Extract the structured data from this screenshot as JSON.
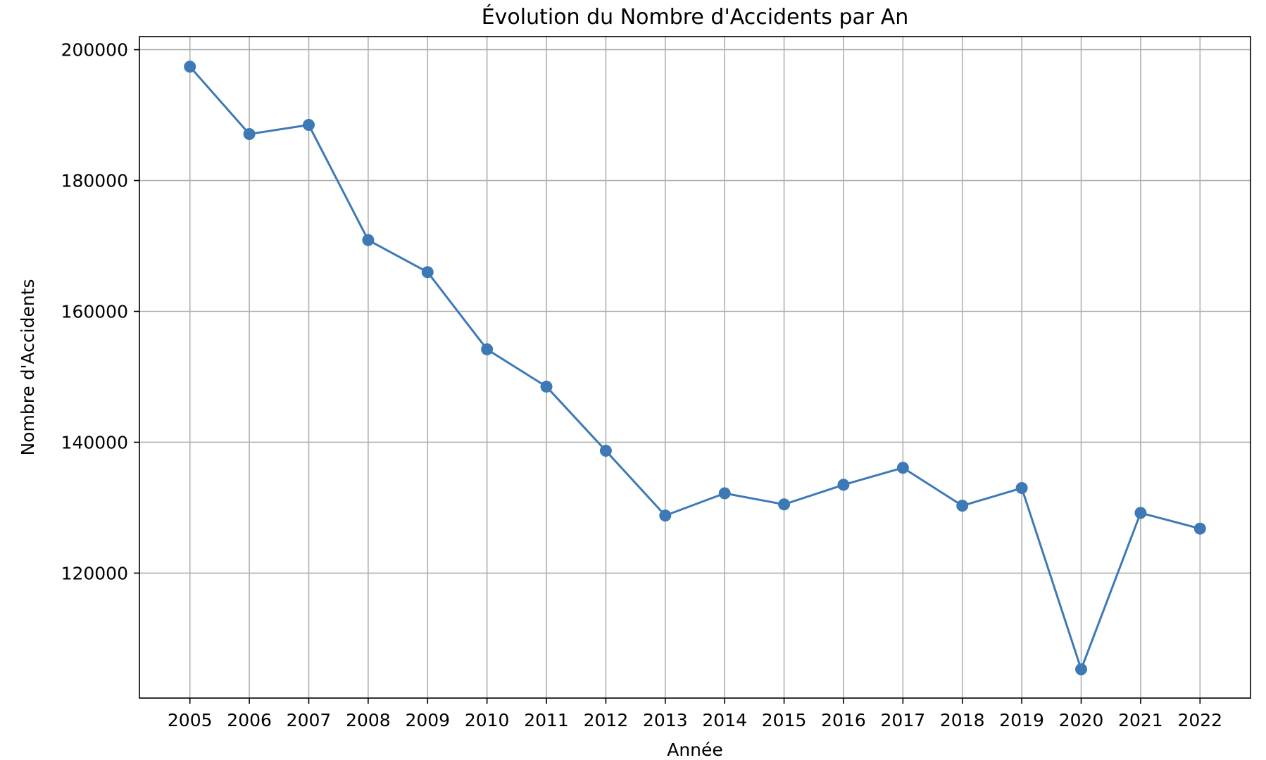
{
  "chart_data": {
    "type": "line",
    "title": "Évolution du Nombre d'Accidents par An",
    "xlabel": "Année",
    "ylabel": "Nombre d'Accidents",
    "x": [
      2005,
      2006,
      2007,
      2008,
      2009,
      2010,
      2011,
      2012,
      2013,
      2014,
      2015,
      2016,
      2017,
      2018,
      2019,
      2020,
      2021,
      2022
    ],
    "series": [
      {
        "values": [
          197400,
          187100,
          188500,
          170900,
          166000,
          154200,
          148500,
          138700,
          128800,
          132200,
          130500,
          133500,
          136100,
          130300,
          133000,
          105300,
          129200,
          126800
        ],
        "color": "#3d7ab5",
        "marker": "circle"
      }
    ],
    "yticks": [
      120000,
      140000,
      160000,
      180000,
      200000
    ],
    "ylim": [
      100900,
      202000
    ],
    "xlim": [
      2004.15,
      2022.85
    ],
    "grid": true
  }
}
